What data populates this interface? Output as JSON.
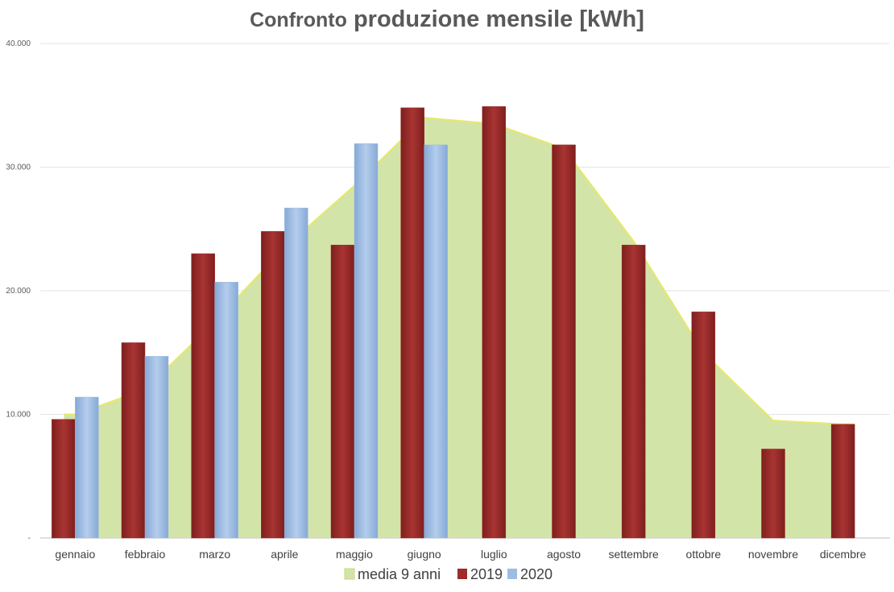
{
  "chart_data": {
    "type": "bar",
    "title_part1": "Confronto",
    "title_part2": "produzione mensile [kWh]",
    "categories": [
      "gennaio",
      "febbraio",
      "marzo",
      "aprile",
      "maggio",
      "giugno",
      "luglio",
      "agosto",
      "settembre",
      "ottobre",
      "novembre",
      "dicembre"
    ],
    "yticks": [
      {
        "value": 0,
        "label": "-"
      },
      {
        "value": 10000,
        "label": "10.000"
      },
      {
        "value": 20000,
        "label": "20.000"
      },
      {
        "value": 30000,
        "label": "30.000"
      },
      {
        "value": 40000,
        "label": "40.000"
      }
    ],
    "ylim": [
      0,
      40000
    ],
    "grid": true,
    "legend_position": "bottom",
    "series": [
      {
        "name": "media 9 anni",
        "kind": "area",
        "color": "#d3e4a8",
        "line_color": "#e8e86a",
        "values": [
          10000,
          12000,
          17500,
          23500,
          28500,
          34000,
          33500,
          31500,
          24000,
          15000,
          9500,
          9200
        ]
      },
      {
        "name": "2019",
        "kind": "bar",
        "color": "#9b2d2b",
        "values": [
          9600,
          15800,
          23000,
          24800,
          23700,
          34800,
          34900,
          31800,
          23700,
          18300,
          7200,
          9200
        ]
      },
      {
        "name": "2020",
        "kind": "bar",
        "color": "#9dbde3",
        "values": [
          11400,
          14700,
          20700,
          26700,
          31900,
          31800,
          null,
          null,
          null,
          null,
          null,
          null
        ]
      }
    ]
  }
}
